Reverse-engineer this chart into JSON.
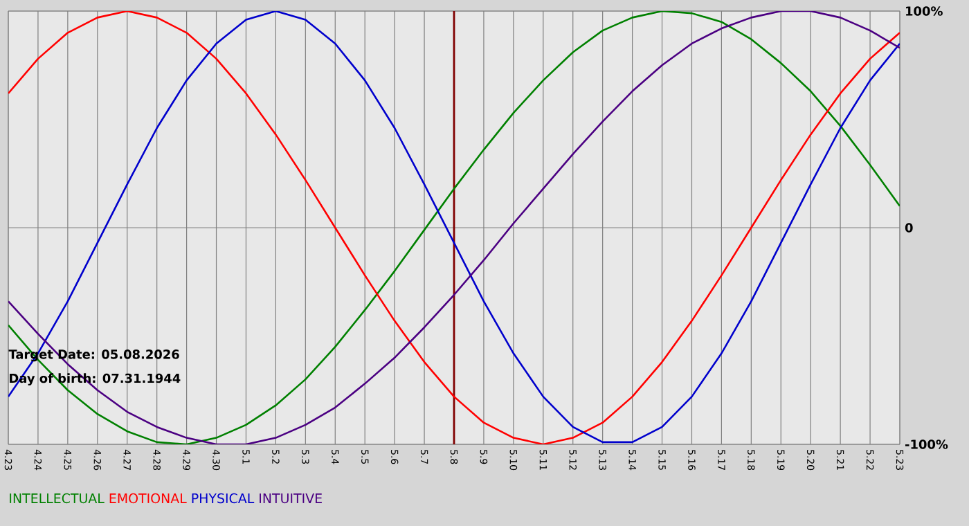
{
  "chart_data": {
    "type": "line",
    "categories": [
      "4.23",
      "4.24",
      "4.25",
      "4.26",
      "4.27",
      "4.28",
      "4.29",
      "4.30",
      "5.1",
      "5.2",
      "5.3",
      "5.4",
      "5.5",
      "5.6",
      "5.7",
      "5.8",
      "5.9",
      "5.10",
      "5.11",
      "5.12",
      "5.13",
      "5.14",
      "5.15",
      "5.16",
      "5.17",
      "5.18",
      "5.19",
      "5.20",
      "5.21",
      "5.22",
      "5.23"
    ],
    "series": [
      {
        "name": "INTELLECTUAL",
        "color": "#008000",
        "values": [
          -45,
          -61,
          -75,
          -86,
          -94,
          -99,
          -100,
          -97,
          -91,
          -82,
          -70,
          -55,
          -38,
          -20,
          -1,
          18,
          36,
          53,
          68,
          81,
          91,
          97,
          100,
          99,
          95,
          87,
          76,
          63,
          47,
          29,
          10
        ]
      },
      {
        "name": "EMOTIONAL",
        "color": "#ff0000",
        "values": [
          62,
          78,
          90,
          97,
          100,
          97,
          90,
          78,
          62,
          43,
          22,
          0,
          -22,
          -43,
          -62,
          -78,
          -90,
          -97,
          -100,
          -97,
          -90,
          -78,
          -62,
          -43,
          -22,
          0,
          22,
          43,
          62,
          78,
          90
        ]
      },
      {
        "name": "PHYSICAL",
        "color": "#0000cc",
        "values": [
          -78,
          -58,
          -34,
          -7,
          20,
          46,
          68,
          85,
          96,
          100,
          96,
          85,
          68,
          46,
          20,
          -7,
          -34,
          -58,
          -78,
          -92,
          -99,
          -99,
          -92,
          -78,
          -58,
          -34,
          -7,
          20,
          46,
          68,
          85
        ]
      },
      {
        "name": "INTUITIVE",
        "color": "#4b0082",
        "values": [
          -34,
          -49,
          -63,
          -75,
          -85,
          -92,
          -97,
          -100,
          -100,
          -97,
          -91,
          -83,
          -72,
          -60,
          -46,
          -31,
          -15,
          2,
          18,
          34,
          49,
          63,
          75,
          85,
          92,
          97,
          100,
          100,
          97,
          91,
          83
        ]
      }
    ],
    "ylim": [
      -100,
      100
    ],
    "yticks": [
      {
        "value": 100,
        "label": "100%"
      },
      0,
      {
        "value": -100,
        "label": "-100%"
      }
    ],
    "grid": true,
    "legend": "bottom left",
    "ref_lines": [
      {
        "axis": "x",
        "value": "5.8",
        "color": "#800000"
      }
    ],
    "annotations": [
      "Target Date: 05.08.2026",
      "Day of birth: 07.31.1944"
    ]
  }
}
